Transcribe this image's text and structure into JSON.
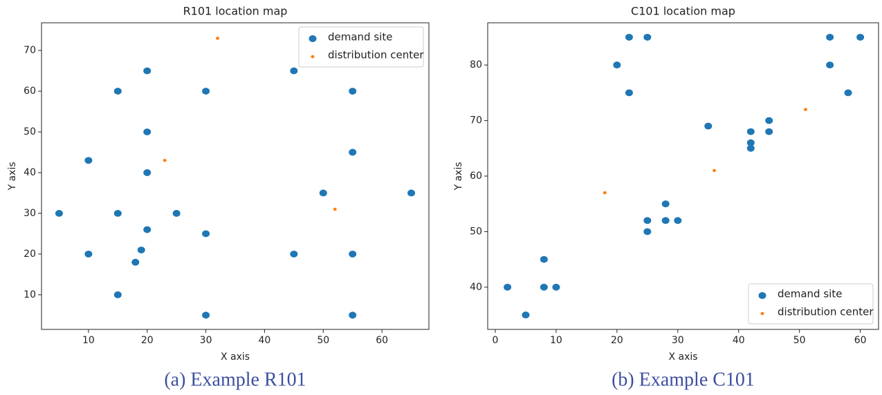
{
  "chart_data": [
    {
      "type": "scatter",
      "title": "R101 location map",
      "xlabel": "X axis",
      "ylabel": "Y axis",
      "caption": "(a) Example R101",
      "xlim": [
        2,
        68
      ],
      "ylim": [
        1.5,
        76.8
      ],
      "xticks": [
        10,
        20,
        30,
        40,
        50,
        60
      ],
      "yticks": [
        10,
        20,
        30,
        40,
        50,
        60,
        70
      ],
      "legend": "upper right",
      "series": [
        {
          "name": "demand site",
          "color": "#1f77b4",
          "size": 5.5,
          "x": [
            5,
            10,
            10,
            15,
            15,
            15,
            20,
            20,
            20,
            20,
            19,
            18,
            25,
            30,
            30,
            30,
            45,
            45,
            50,
            55,
            55,
            55,
            55,
            65
          ],
          "values": [
            30,
            43,
            20,
            60,
            30,
            10,
            65,
            50,
            40,
            26,
            21,
            18,
            30,
            60,
            25,
            5,
            65,
            20,
            35,
            60,
            45,
            20,
            5,
            35
          ]
        },
        {
          "name": "distribution center",
          "color": "#ff7f0e",
          "size": 2.5,
          "x": [
            32,
            23,
            52
          ],
          "values": [
            73,
            43,
            31
          ]
        }
      ]
    },
    {
      "type": "scatter",
      "title": "C101 location map",
      "xlabel": "X axis",
      "ylabel": "Y axis",
      "caption": "(b) Example C101",
      "xlim": [
        -1.25,
        63
      ],
      "ylim": [
        32.4,
        87.6
      ],
      "xticks": [
        0,
        10,
        20,
        30,
        40,
        50,
        60
      ],
      "yticks": [
        40,
        50,
        60,
        70,
        80
      ],
      "legend": "lower right",
      "series": [
        {
          "name": "demand site",
          "color": "#1f77b4",
          "size": 5.5,
          "x": [
            2,
            5,
            8,
            8,
            10,
            20,
            22,
            22,
            25,
            25,
            25,
            28,
            28,
            30,
            35,
            42,
            42,
            42,
            45,
            45,
            55,
            55,
            58,
            60
          ],
          "values": [
            40,
            35,
            45,
            40,
            40,
            80,
            85,
            75,
            85,
            52,
            50,
            55,
            52,
            52,
            69,
            68,
            66,
            65,
            70,
            68,
            85,
            80,
            75,
            85
          ]
        },
        {
          "name": "distribution center",
          "color": "#ff7f0e",
          "size": 2.5,
          "x": [
            18,
            36,
            51
          ],
          "values": [
            57,
            61,
            72
          ]
        }
      ]
    }
  ]
}
